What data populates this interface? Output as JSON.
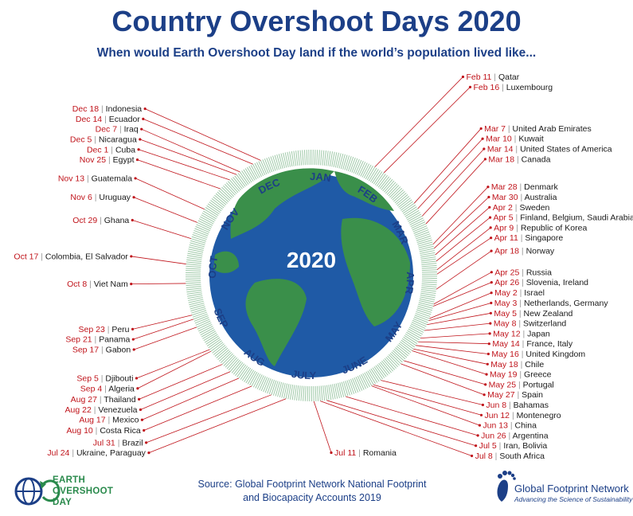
{
  "title": "Country Overshoot Days 2020",
  "subtitle": "When would Earth Overshoot Day land if the world’s population lived like...",
  "center_label": "2020",
  "months": [
    "JAN",
    "FEB",
    "MAR",
    "APR",
    "MAY",
    "JUNE",
    "JULY",
    "AUG",
    "SEP",
    "OCT",
    "NOV",
    "DEC"
  ],
  "colors": {
    "title": "#1c3f87",
    "date": "#c0141b",
    "leader": "#c0141b",
    "ocean": "#1f5aa6",
    "land": "#3a8f4a",
    "ring_ticks": "#9fc9a8"
  },
  "entries": [
    {
      "date": "Feb 11",
      "country": "Qatar"
    },
    {
      "date": "Feb 16",
      "country": "Luxembourg"
    },
    {
      "date": "Mar 7",
      "country": "United Arab Emirates"
    },
    {
      "date": "Mar 10",
      "country": "Kuwait"
    },
    {
      "date": "Mar 14",
      "country": "United States of America"
    },
    {
      "date": "Mar 18",
      "country": "Canada"
    },
    {
      "date": "Mar 28",
      "country": "Denmark"
    },
    {
      "date": "Mar 30",
      "country": "Australia"
    },
    {
      "date": "Apr 2",
      "country": "Sweden"
    },
    {
      "date": "Apr 5",
      "country": "Finland, Belgium, Saudi Arabia"
    },
    {
      "date": "Apr 9",
      "country": "Republic of Korea"
    },
    {
      "date": "Apr 11",
      "country": "Singapore"
    },
    {
      "date": "Apr 18",
      "country": "Norway"
    },
    {
      "date": "Apr 25",
      "country": "Russia"
    },
    {
      "date": "Apr 26",
      "country": "Slovenia, Ireland"
    },
    {
      "date": "May 2",
      "country": "Israel"
    },
    {
      "date": "May 3",
      "country": "Netherlands, Germany"
    },
    {
      "date": "May 5",
      "country": "New Zealand"
    },
    {
      "date": "May 8",
      "country": "Switzerland"
    },
    {
      "date": "May 12",
      "country": "Japan"
    },
    {
      "date": "May 14",
      "country": "France, Italy"
    },
    {
      "date": "May 16",
      "country": "United Kingdom"
    },
    {
      "date": "May 18",
      "country": "Chile"
    },
    {
      "date": "May 19",
      "country": "Greece"
    },
    {
      "date": "May 25",
      "country": "Portugal"
    },
    {
      "date": "May 27",
      "country": "Spain"
    },
    {
      "date": "Jun 8",
      "country": "Bahamas"
    },
    {
      "date": "Jun 12",
      "country": "Montenegro"
    },
    {
      "date": "Jun 13",
      "country": "China"
    },
    {
      "date": "Jun 26",
      "country": "Argentina"
    },
    {
      "date": "Jul 5",
      "country": "Iran, Bolivia"
    },
    {
      "date": "Jul 8",
      "country": "South Africa"
    },
    {
      "date": "Jul 11",
      "country": "Romania"
    },
    {
      "date": "Jul 24",
      "country": "Ukraine, Paraguay"
    },
    {
      "date": "Jul 31",
      "country": "Brazil"
    },
    {
      "date": "Aug 10",
      "country": "Costa Rica"
    },
    {
      "date": "Aug 17",
      "country": "Mexico"
    },
    {
      "date": "Aug 22",
      "country": "Venezuela"
    },
    {
      "date": "Aug 27",
      "country": "Thailand"
    },
    {
      "date": "Sep 4",
      "country": "Algeria"
    },
    {
      "date": "Sep 5",
      "country": "Djibouti"
    },
    {
      "date": "Sep 17",
      "country": "Gabon"
    },
    {
      "date": "Sep 21",
      "country": "Panama"
    },
    {
      "date": "Sep 23",
      "country": "Peru"
    },
    {
      "date": "Oct 8",
      "country": "Viet Nam"
    },
    {
      "date": "Oct 17",
      "country": "Colombia, El Salvador"
    },
    {
      "date": "Oct 29",
      "country": "Ghana"
    },
    {
      "date": "Nov 6",
      "country": "Uruguay"
    },
    {
      "date": "Nov 13",
      "country": "Guatemala"
    },
    {
      "date": "Nov 25",
      "country": "Egypt"
    },
    {
      "date": "Dec 1",
      "country": "Cuba"
    },
    {
      "date": "Dec 5",
      "country": "Nicaragua"
    },
    {
      "date": "Dec 7",
      "country": "Iraq"
    },
    {
      "date": "Dec 14",
      "country": "Ecuador"
    },
    {
      "date": "Dec 18",
      "country": "Indonesia"
    }
  ],
  "source": {
    "line1": "Source: Global Footprint Network National Footprint",
    "line2": "and Biocapacity Accounts 2019"
  },
  "logo_eod": {
    "line1": "EARTH",
    "line2": "OVERSHOOT",
    "line3": "DAY"
  },
  "logo_gfn": {
    "name": "Global Footprint Network",
    "tagline": "Advancing the Science of Sustainability"
  }
}
